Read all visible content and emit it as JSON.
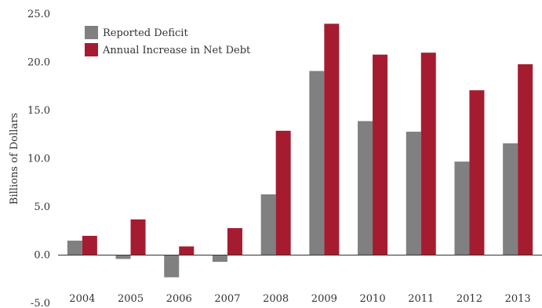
{
  "chart_data": {
    "type": "bar",
    "ylabel": "Billions of Dollars",
    "ylim": [
      -5,
      25
    ],
    "yticks": [
      "-5.0",
      "0.0",
      "5.0",
      "10.0",
      "15.0",
      "20.0",
      "25.0"
    ],
    "grid": false,
    "legend_position": "top-left",
    "categories": [
      "2004",
      "2005",
      "2006",
      "2007",
      "2008",
      "2009",
      "2010",
      "2011",
      "2012",
      "2013"
    ],
    "series": [
      {
        "name": "Reported Deficit",
        "color": "#808080",
        "values": [
          1.5,
          -0.4,
          -2.3,
          -0.7,
          6.3,
          19.1,
          13.9,
          12.8,
          9.7,
          11.6
        ]
      },
      {
        "name": "Annual Increase in Net Debt",
        "color": "#a51c30",
        "values": [
          2.0,
          3.7,
          0.9,
          2.8,
          12.9,
          24.0,
          20.8,
          21.0,
          17.1,
          19.8
        ]
      }
    ]
  }
}
